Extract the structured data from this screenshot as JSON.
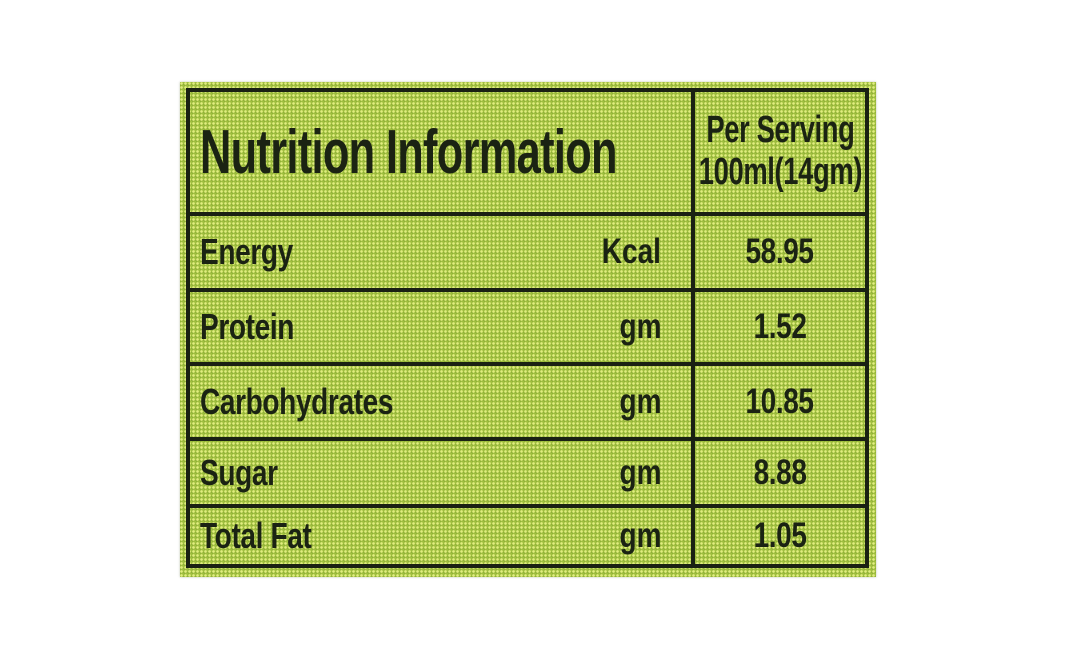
{
  "colors": {
    "page_background": "#ffffff",
    "panel_green": "#9fbe3e",
    "halftone_dot": "#e4f082",
    "rule_ink": "#1a2113",
    "text_ink": "#1b2313"
  },
  "label": {
    "header": {
      "title": "Nutrition Information",
      "per_serving_line1": "Per Serving",
      "per_serving_line2": "100ml(14gm)"
    },
    "rows": [
      {
        "name": "Energy",
        "unit": "Kcal",
        "value": "58.95"
      },
      {
        "name": "Protein",
        "unit": "gm",
        "value": "1.52"
      },
      {
        "name": "Carbohydrates",
        "unit": "gm",
        "value": "10.85"
      },
      {
        "name": "Sugar",
        "unit": "gm",
        "value": "8.88"
      },
      {
        "name": "Total Fat",
        "unit": "gm",
        "value": "1.05"
      }
    ]
  }
}
